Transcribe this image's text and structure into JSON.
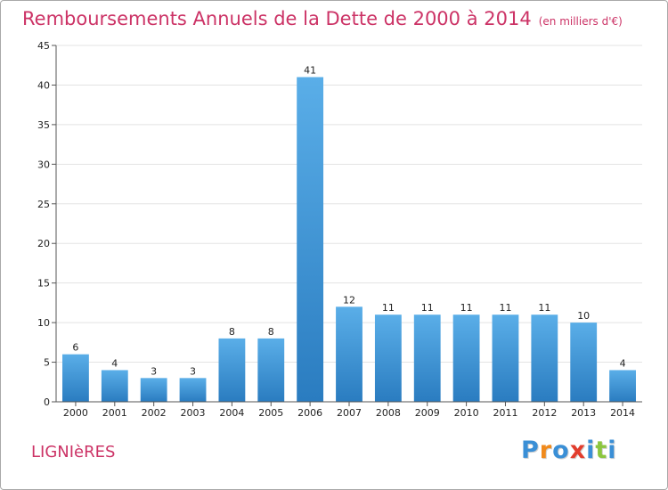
{
  "header": {
    "title": "Remboursements Annuels de la Dette de 2000 à 2014",
    "unit": "(en milliers d'€)"
  },
  "commune": "LIGNIèRES",
  "logo": {
    "text": "Proxiti",
    "letters": [
      "P",
      "r",
      "o",
      "x",
      "i",
      "t",
      "i"
    ],
    "colors": [
      "#3a8fd6",
      "#f08a1c",
      "#3a8fd6",
      "#e23d2d",
      "#3a8fd6",
      "#8cc63f",
      "#3a8fd6"
    ]
  },
  "colors": {
    "title": "#cc3366",
    "bar_top": "#5aaee8",
    "bar_bottom": "#2a7cc0",
    "grid": "#e3e3e3",
    "axis": "#555555"
  },
  "chart_data": {
    "type": "bar",
    "categories": [
      "2000",
      "2001",
      "2002",
      "2003",
      "2004",
      "2005",
      "2006",
      "2007",
      "2008",
      "2009",
      "2010",
      "2011",
      "2012",
      "2013",
      "2014"
    ],
    "values": [
      6,
      4,
      3,
      3,
      8,
      8,
      41,
      12,
      11,
      11,
      11,
      11,
      11,
      10,
      4
    ],
    "title": "Remboursements Annuels de la Dette de 2000 à 2014",
    "ylim": [
      0,
      45
    ],
    "yticks": [
      0,
      5,
      10,
      15,
      20,
      25,
      30,
      35,
      40,
      45
    ],
    "grid": true,
    "legend": "none"
  }
}
